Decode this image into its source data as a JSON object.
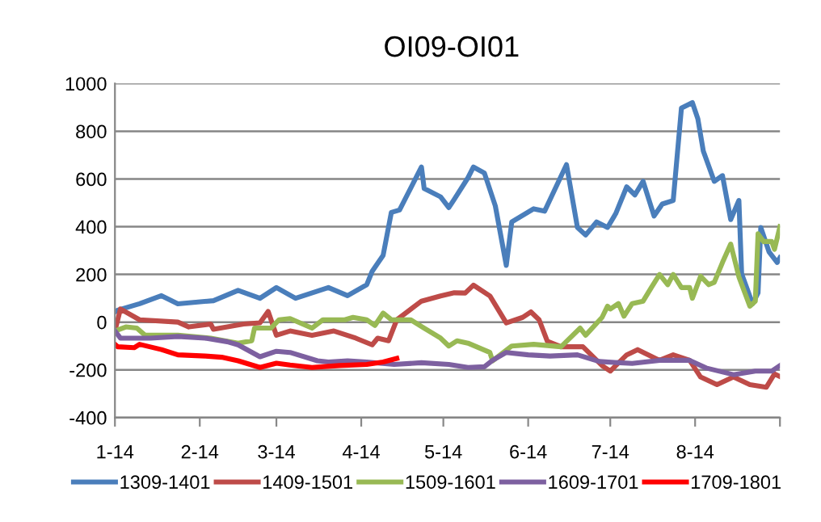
{
  "chart_data": {
    "type": "line",
    "title": "OI09-OI01",
    "xlim": [
      "2014-01-01",
      "2014-09-01"
    ],
    "xticks": [
      {
        "value": "2014-01-01",
        "label": "1-14"
      },
      {
        "value": "2014-02-01",
        "label": "2-14"
      },
      {
        "value": "2014-03-01",
        "label": "3-14"
      },
      {
        "value": "2014-04-01",
        "label": "4-14"
      },
      {
        "value": "2014-05-01",
        "label": "5-14"
      },
      {
        "value": "2014-06-01",
        "label": "6-14"
      },
      {
        "value": "2014-07-01",
        "label": "7-14"
      },
      {
        "value": "2014-08-01",
        "label": "8-14"
      },
      {
        "value": "2014-09-01",
        "label": null
      }
    ],
    "ylim": [
      -400,
      1000
    ],
    "yticks": [
      -400,
      -200,
      0,
      200,
      400,
      600,
      800,
      1000
    ],
    "grid": "y",
    "legend": "bottom",
    "marker": "none",
    "line_style": "solid",
    "series": [
      {
        "name": "1309-1401",
        "color": "#4a7ebb",
        "x": [
          "2014-01-01",
          "2014-01-02",
          "2014-01-10",
          "2014-01-18",
          "2014-01-24",
          "2014-02-06",
          "2014-02-15",
          "2014-02-23",
          "2014-03-01",
          "2014-03-08",
          "2014-03-20",
          "2014-03-27",
          "2014-04-03",
          "2014-04-05",
          "2014-04-09",
          "2014-04-12",
          "2014-04-15",
          "2014-04-23",
          "2014-04-24",
          "2014-04-30",
          "2014-05-03",
          "2014-05-05",
          "2014-05-10",
          "2014-05-12",
          "2014-05-16",
          "2014-05-20",
          "2014-05-24",
          "2014-05-26",
          "2014-06-03",
          "2014-06-07",
          "2014-06-15",
          "2014-06-19",
          "2014-06-22",
          "2014-06-26",
          "2014-06-30",
          "2014-07-03",
          "2014-07-07",
          "2014-07-10",
          "2014-07-13",
          "2014-07-17",
          "2014-07-20",
          "2014-07-24",
          "2014-07-27",
          "2014-07-31",
          "2014-08-02",
          "2014-08-04",
          "2014-08-08",
          "2014-08-11",
          "2014-08-14",
          "2014-08-17",
          "2014-08-18",
          "2014-08-22",
          "2014-08-24",
          "2014-08-25",
          "2014-08-28",
          "2014-08-31",
          "2014-09-01"
        ],
        "values": [
          43,
          50,
          77,
          111,
          77,
          90,
          133,
          100,
          145,
          100,
          145,
          111,
          157,
          213,
          280,
          460,
          470,
          650,
          560,
          525,
          480,
          515,
          605,
          650,
          625,
          487,
          238,
          420,
          475,
          465,
          660,
          397,
          365,
          420,
          397,
          455,
          567,
          533,
          590,
          445,
          495,
          510,
          897,
          920,
          852,
          717,
          590,
          614,
          430,
          510,
          203,
          77,
          123,
          397,
          295,
          250,
          270
        ]
      },
      {
        "name": "1409-1501",
        "color": "#be4b48",
        "x": [
          "2014-01-01",
          "2014-01-03",
          "2014-01-10",
          "2014-01-24",
          "2014-01-28",
          "2014-02-05",
          "2014-02-06",
          "2014-02-17",
          "2014-02-23",
          "2014-02-26",
          "2014-03-01",
          "2014-03-06",
          "2014-03-14",
          "2014-03-22",
          "2014-03-30",
          "2014-04-05",
          "2014-04-07",
          "2014-04-11",
          "2014-04-14",
          "2014-04-23",
          "2014-04-30",
          "2014-05-05",
          "2014-05-09",
          "2014-05-12",
          "2014-05-18",
          "2014-05-24",
          "2014-05-30",
          "2014-06-02",
          "2014-06-05",
          "2014-06-08",
          "2014-06-13",
          "2014-06-21",
          "2014-06-28",
          "2014-07-01",
          "2014-07-07",
          "2014-07-11",
          "2014-07-19",
          "2014-07-24",
          "2014-07-30",
          "2014-08-03",
          "2014-08-09",
          "2014-08-15",
          "2014-08-21",
          "2014-08-27",
          "2014-08-30",
          "2014-09-01"
        ],
        "values": [
          -37,
          55,
          10,
          0,
          -20,
          -8,
          -30,
          -8,
          -3,
          45,
          -55,
          -37,
          -55,
          -37,
          -67,
          -95,
          -67,
          -78,
          10,
          88,
          110,
          123,
          122,
          155,
          110,
          -3,
          20,
          43,
          10,
          -80,
          -103,
          -103,
          -182,
          -205,
          -137,
          -115,
          -160,
          -137,
          -160,
          -230,
          -262,
          -230,
          -262,
          -273,
          -217,
          -228
        ]
      },
      {
        "name": "1509-1601",
        "color": "#98b954",
        "x": [
          "2014-01-01",
          "2014-01-05",
          "2014-01-09",
          "2014-01-12",
          "2014-01-24",
          "2014-02-05",
          "2014-02-15",
          "2014-02-20",
          "2014-02-21",
          "2014-02-27",
          "2014-03-02",
          "2014-03-06",
          "2014-03-14",
          "2014-03-18",
          "2014-03-26",
          "2014-03-29",
          "2014-04-03",
          "2014-04-06",
          "2014-04-09",
          "2014-04-12",
          "2014-04-19",
          "2014-04-24",
          "2014-04-30",
          "2014-05-03",
          "2014-05-06",
          "2014-05-10",
          "2014-05-18",
          "2014-05-19",
          "2014-05-26",
          "2014-06-03",
          "2014-06-13",
          "2014-06-20",
          "2014-06-22",
          "2014-06-28",
          "2014-06-30",
          "2014-07-01",
          "2014-07-04",
          "2014-07-06",
          "2014-07-09",
          "2014-07-13",
          "2014-07-16",
          "2014-07-19",
          "2014-07-22",
          "2014-07-24",
          "2014-07-27",
          "2014-07-30",
          "2014-07-31",
          "2014-08-03",
          "2014-08-06",
          "2014-08-08",
          "2014-08-11",
          "2014-08-14",
          "2014-08-17",
          "2014-08-21",
          "2014-08-23",
          "2014-08-24",
          "2014-08-26",
          "2014-08-29",
          "2014-08-30",
          "2014-09-01"
        ],
        "values": [
          -37,
          -20,
          -25,
          -55,
          -55,
          -67,
          -88,
          -78,
          -25,
          -25,
          10,
          15,
          -25,
          10,
          10,
          20,
          10,
          -14,
          38,
          10,
          10,
          -25,
          -67,
          -100,
          -78,
          -88,
          -127,
          -162,
          -100,
          -93,
          -103,
          -25,
          -55,
          20,
          67,
          55,
          78,
          25,
          78,
          88,
          145,
          200,
          157,
          200,
          145,
          145,
          100,
          192,
          157,
          167,
          250,
          327,
          190,
          67,
          88,
          370,
          338,
          338,
          305,
          400
        ]
      },
      {
        "name": "1609-1701",
        "color": "#7d60a0",
        "x": [
          "2014-01-01",
          "2014-01-03",
          "2014-01-14",
          "2014-01-24",
          "2014-02-03",
          "2014-02-11",
          "2014-02-15",
          "2014-02-23",
          "2014-03-01",
          "2014-03-06",
          "2014-03-16",
          "2014-03-20",
          "2014-03-27",
          "2014-04-03",
          "2014-04-13",
          "2014-04-23",
          "2014-05-03",
          "2014-05-10",
          "2014-05-16",
          "2014-05-19",
          "2014-05-24",
          "2014-06-01",
          "2014-06-09",
          "2014-06-19",
          "2014-06-27",
          "2014-07-09",
          "2014-07-19",
          "2014-07-30",
          "2014-08-05",
          "2014-08-15",
          "2014-08-23",
          "2014-08-29",
          "2014-09-01"
        ],
        "values": [
          -37,
          -67,
          -67,
          -60,
          -67,
          -82,
          -95,
          -145,
          -122,
          -127,
          -162,
          -167,
          -162,
          -167,
          -177,
          -170,
          -177,
          -190,
          -187,
          -160,
          -127,
          -137,
          -142,
          -137,
          -165,
          -173,
          -160,
          -160,
          -192,
          -220,
          -205,
          -205,
          -182
        ]
      },
      {
        "name": "1709-1801",
        "color": "#ff0000",
        "x": [
          "2014-01-01",
          "2014-01-02",
          "2014-01-08",
          "2014-01-10",
          "2014-01-18",
          "2014-01-24",
          "2014-02-03",
          "2014-02-09",
          "2014-02-15",
          "2014-02-23",
          "2014-03-01",
          "2014-03-06",
          "2014-03-14",
          "2014-03-24",
          "2014-04-03",
          "2014-04-09",
          "2014-04-14"
        ],
        "values": [
          -93,
          -103,
          -107,
          -93,
          -115,
          -137,
          -142,
          -147,
          -162,
          -190,
          -172,
          -180,
          -190,
          -182,
          -177,
          -167,
          -152
        ]
      }
    ]
  }
}
